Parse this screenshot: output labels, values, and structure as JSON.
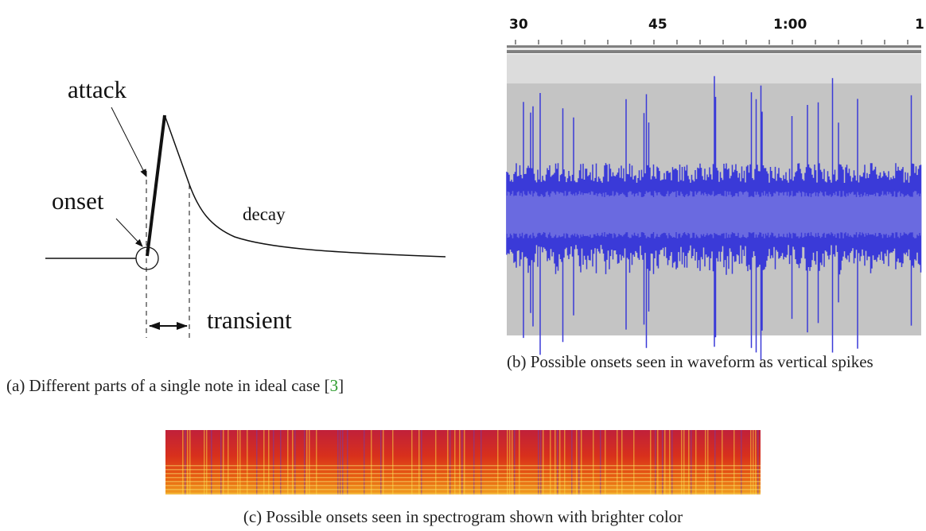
{
  "diagram": {
    "labels": {
      "attack": "attack",
      "onset": "onset",
      "decay": "decay",
      "transient": "transient"
    }
  },
  "waveform": {
    "ticks": [
      "30",
      "45",
      "1:00",
      "1"
    ]
  },
  "captions": {
    "a": {
      "text": "(a) Different parts of a single note in ideal case ",
      "cite_open": "[",
      "cite": "3",
      "cite_close": "]"
    },
    "b": {
      "text": "(b) Possible onsets seen in waveform as vertical spikes"
    },
    "c": {
      "text": "(c) Possible onsets seen in spectrogram shown with brighter color"
    }
  }
}
